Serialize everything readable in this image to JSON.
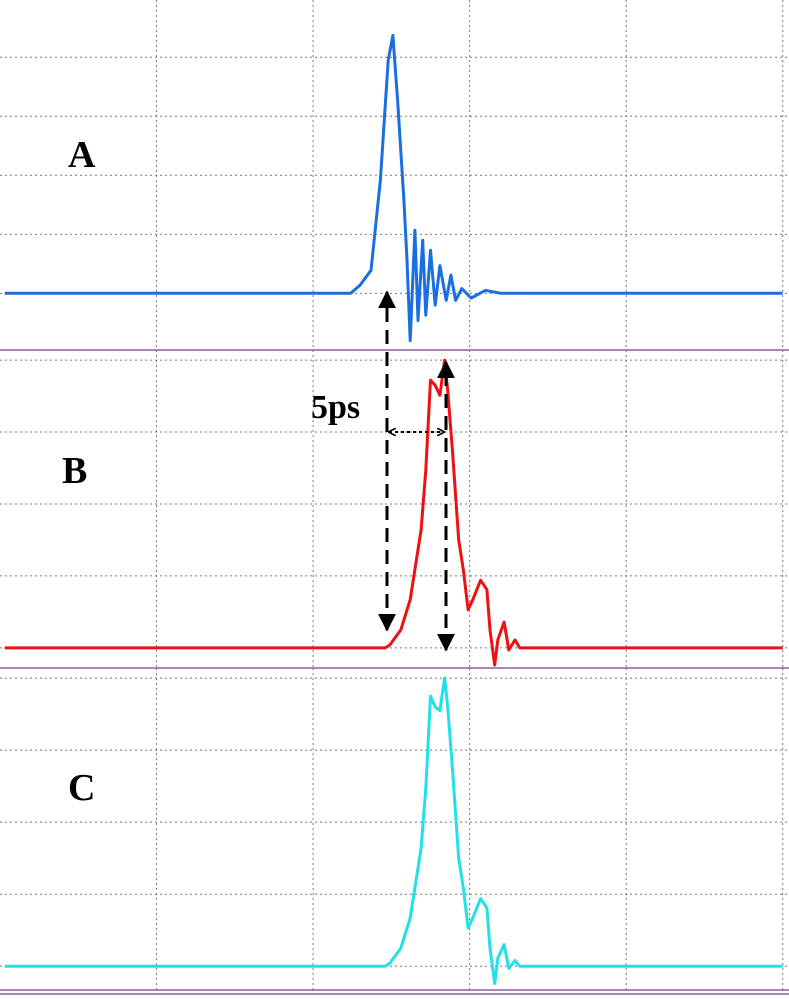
{
  "chart_data": [
    {
      "type": "line",
      "label": "A",
      "x": [
        0.03,
        2.24,
        2.3,
        2.37,
        2.43,
        2.48,
        2.51,
        2.54,
        2.58,
        2.6,
        2.62,
        2.65,
        2.67,
        2.7,
        2.72,
        2.75,
        2.78,
        2.81,
        2.85,
        2.88,
        2.91,
        2.95,
        3.01,
        3.1,
        3.2,
        5.0
      ],
      "series": [
        {
          "color": "#1a6fe0",
          "values": [
            0,
            0,
            0.14,
            0.39,
            1.92,
            3.95,
            4.37,
            3.27,
            1.58,
            0.56,
            -0.8,
            1.07,
            -0.46,
            0.9,
            -0.37,
            0.73,
            -0.2,
            0.47,
            -0.12,
            0.31,
            -0.12,
            0.08,
            -0.08,
            0.05,
            0,
            0
          ]
        }
      ],
      "xlim": [
        0,
        5.04
      ],
      "xticks": [
        1,
        2,
        3,
        4,
        5
      ],
      "ylim": [
        -0.96,
        4.97
      ],
      "yticks": [
        0,
        1,
        2,
        3,
        4
      ],
      "grid": true
    },
    {
      "type": "line",
      "label": "B",
      "annotation": "5ps",
      "x": [
        0.03,
        2.46,
        2.49,
        2.56,
        2.62,
        2.69,
        2.72,
        2.75,
        2.78,
        2.81,
        2.84,
        2.86,
        2.89,
        2.93,
        2.96,
        2.99,
        3.02,
        3.07,
        3.11,
        3.13,
        3.16,
        3.18,
        3.22,
        3.25,
        3.29,
        3.32,
        5.0
      ],
      "series": [
        {
          "color": "#ee1111",
          "values": [
            0,
            0,
            0.04,
            0.25,
            0.67,
            1.64,
            2.47,
            3.72,
            3.65,
            3.51,
            4.0,
            3.58,
            2.75,
            1.5,
            1.08,
            0.53,
            0.67,
            0.94,
            0.81,
            0.25,
            -0.24,
            0.11,
            0.36,
            -0.03,
            0.11,
            0,
            0
          ]
        }
      ],
      "xlim": [
        0,
        5.04
      ],
      "xticks": [
        1,
        2,
        3,
        4,
        5
      ],
      "ylim": [
        -0.28,
        4.14
      ],
      "yticks": [
        0,
        1,
        2,
        3,
        4
      ],
      "grid": true
    },
    {
      "type": "line",
      "label": "C",
      "x": [
        0.03,
        2.46,
        2.49,
        2.56,
        2.62,
        2.69,
        2.72,
        2.75,
        2.78,
        2.81,
        2.84,
        2.86,
        2.89,
        2.93,
        2.96,
        2.99,
        3.02,
        3.07,
        3.11,
        3.13,
        3.16,
        3.18,
        3.22,
        3.25,
        3.29,
        3.32,
        5.0
      ],
      "series": [
        {
          "color": "#22e0e8",
          "values": [
            0,
            0,
            0.04,
            0.25,
            0.67,
            1.64,
            2.47,
            3.75,
            3.6,
            3.55,
            4.0,
            3.6,
            2.75,
            1.5,
            1.08,
            0.53,
            0.67,
            0.94,
            0.81,
            0.25,
            -0.24,
            0.11,
            0.3,
            -0.03,
            0.08,
            0,
            0
          ]
        }
      ],
      "xlim": [
        0,
        5.04
      ],
      "xticks": [
        1,
        2,
        3,
        4,
        5
      ],
      "ylim": [
        -0.33,
        4.14
      ],
      "yticks": [
        0,
        1,
        2,
        3,
        4
      ],
      "grid": true
    }
  ]
}
